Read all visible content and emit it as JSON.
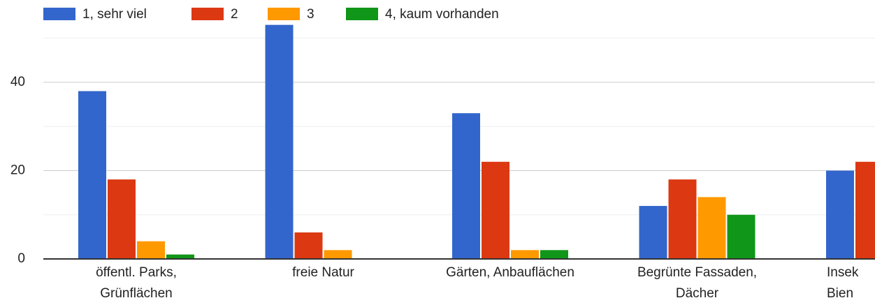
{
  "chart_data": {
    "type": "bar",
    "categories": [
      [
        "öffentl. Parks,",
        "Grünflächen"
      ],
      [
        "freie Natur"
      ],
      [
        "Gärten, Anbauflächen"
      ],
      [
        "Begrünte Fassaden,",
        "Dächer"
      ],
      [
        "Insek",
        "Bien"
      ]
    ],
    "series": [
      {
        "name": "1, sehr viel",
        "color": "#3366cc",
        "values": [
          38,
          53,
          33,
          12,
          20
        ]
      },
      {
        "name": "2",
        "color": "#dc3912",
        "values": [
          18,
          6,
          22,
          18,
          22
        ]
      },
      {
        "name": "3",
        "color": "#ff9900",
        "values": [
          4,
          2,
          2,
          14,
          null
        ]
      },
      {
        "name": "4, kaum vorhanden",
        "color": "#109618",
        "values": [
          1,
          0,
          2,
          10,
          null
        ]
      }
    ],
    "ylim": [
      0,
      58
    ],
    "yticks": [
      0,
      20,
      40
    ],
    "minor_yticks": [
      10,
      30,
      50
    ],
    "grid": true,
    "legend": "top"
  }
}
